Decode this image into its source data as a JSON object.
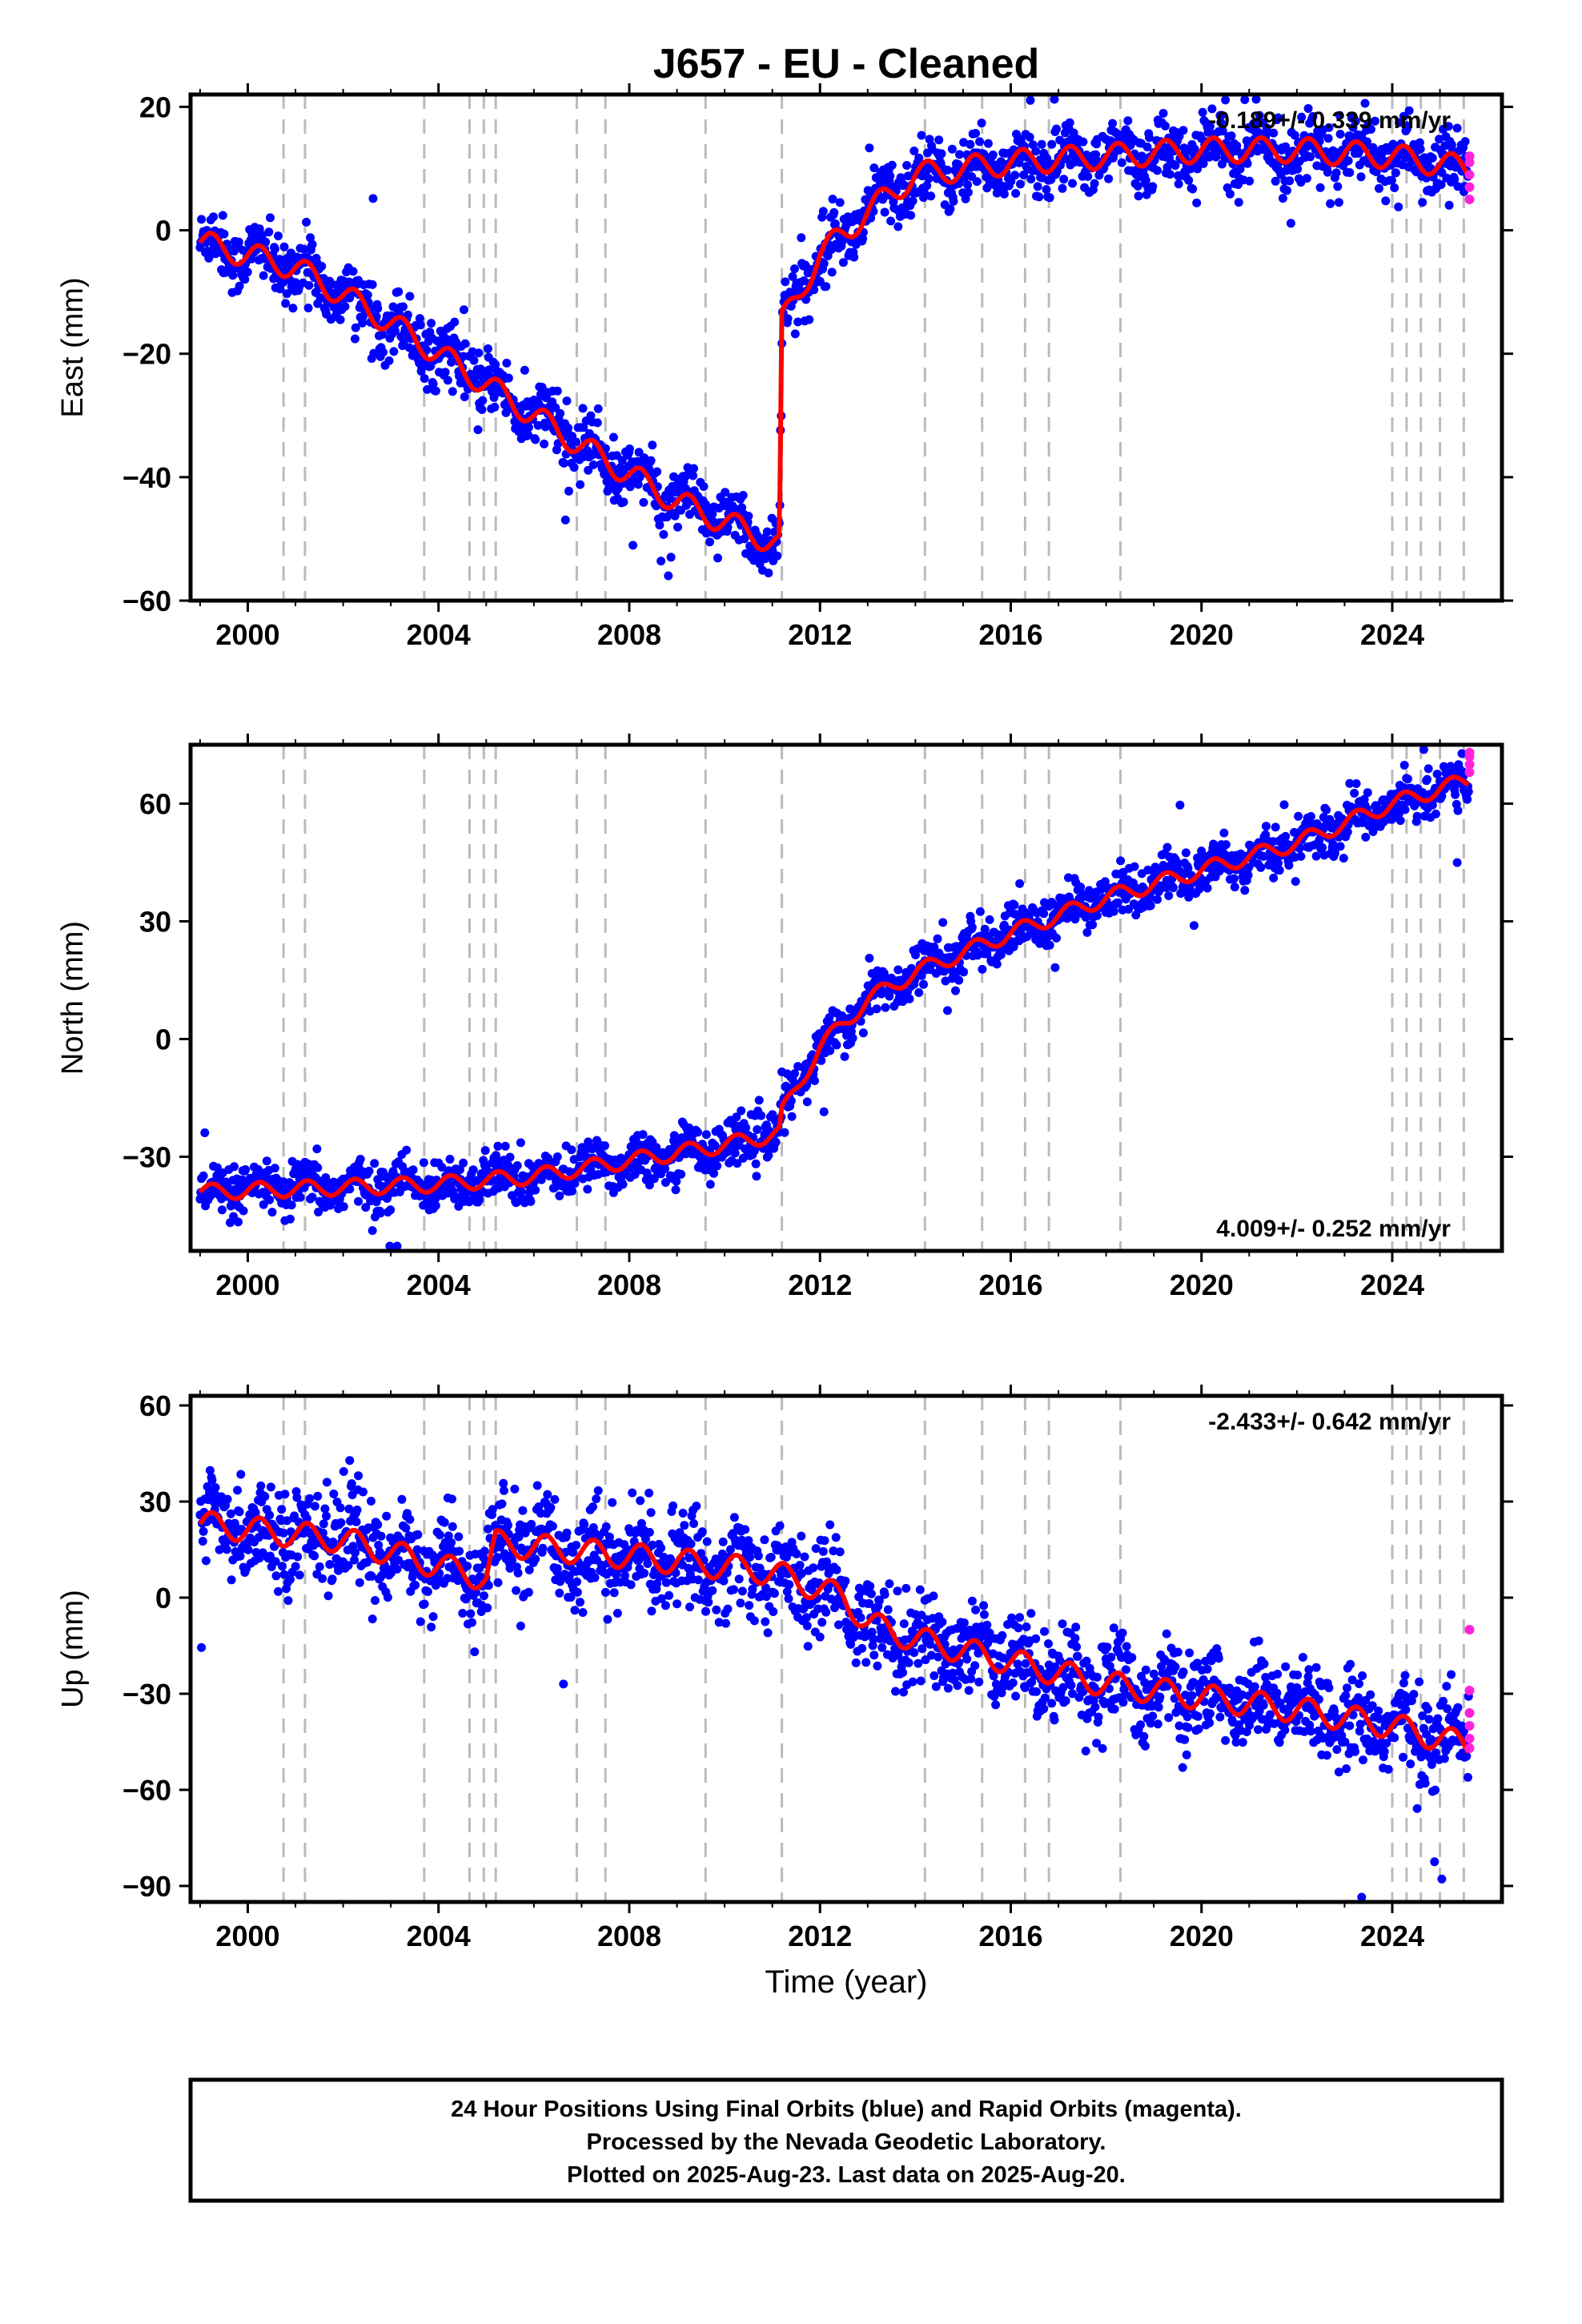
{
  "chart_data": {
    "type": "scatter",
    "title": "J657  - EU - Cleaned",
    "xlabel": "Time (year)",
    "xlim": [
      1998.8,
      2026.3
    ],
    "x_ticks": [
      2000,
      2004,
      2008,
      2012,
      2016,
      2020,
      2024
    ],
    "grid": false,
    "event_lines_years": [
      2000.75,
      2001.2,
      2003.7,
      2004.65,
      2004.95,
      2005.2,
      2006.9,
      2007.5,
      2009.6,
      2011.2,
      2014.2,
      2015.4,
      2016.3,
      2016.8,
      2018.3,
      2024.0,
      2024.3,
      2024.6,
      2025.0,
      2025.5
    ],
    "colors": {
      "final": "#0000ff",
      "rapid": "#ff22dd",
      "model": "#ff0000",
      "event": "#bbbbbb"
    },
    "legend": "bottom box",
    "panels": [
      {
        "ylabel": "East (mm)",
        "ylim": [
          -60,
          22
        ],
        "y_ticks": [
          -60,
          -40,
          -20,
          0,
          20
        ],
        "rate_label": "-0.189+/- 0.339 mm/yr",
        "rate_position": "top-right",
        "model_keypoints": [
          [
            1999.0,
            -2
          ],
          [
            2001.0,
            -6
          ],
          [
            2003.0,
            -15
          ],
          [
            2005.0,
            -25
          ],
          [
            2007.0,
            -35
          ],
          [
            2009.0,
            -44
          ],
          [
            2011.15,
            -51
          ],
          [
            2011.2,
            -15
          ],
          [
            2012.0,
            -4
          ],
          [
            2013.0,
            3
          ],
          [
            2014.0,
            9
          ],
          [
            2015.0,
            10
          ],
          [
            2016.0,
            11
          ],
          [
            2018.0,
            12
          ],
          [
            2020.0,
            13
          ],
          [
            2022.0,
            13
          ],
          [
            2024.0,
            12
          ],
          [
            2025.6,
            10
          ]
        ],
        "seasonal_amplitude": 2.0,
        "scatter": 2.5,
        "rapid_y": [
          5,
          7,
          9,
          11,
          12
        ]
      },
      {
        "ylabel": "North (mm)",
        "ylim": [
          -54,
          75
        ],
        "y_ticks": [
          -30,
          0,
          30,
          60
        ],
        "rate_label": "4.009+/- 0.252 mm/yr",
        "rate_position": "bottom-right",
        "model_keypoints": [
          [
            1999.0,
            -39
          ],
          [
            2004.0,
            -37
          ],
          [
            2006.0,
            -35
          ],
          [
            2008.0,
            -31
          ],
          [
            2010.0,
            -27
          ],
          [
            2011.15,
            -24
          ],
          [
            2011.2,
            -19
          ],
          [
            2012.0,
            -2
          ],
          [
            2013.0,
            10
          ],
          [
            2014.0,
            17
          ],
          [
            2015.0,
            22
          ],
          [
            2016.0,
            27
          ],
          [
            2018.0,
            36
          ],
          [
            2020.0,
            43
          ],
          [
            2022.0,
            50
          ],
          [
            2024.0,
            60
          ],
          [
            2025.6,
            66
          ]
        ],
        "seasonal_amplitude": 2.0,
        "scatter": 3.0,
        "rapid_y": [
          68,
          70,
          72,
          73
        ]
      },
      {
        "ylabel": "Up (mm)",
        "ylim": [
          -95,
          63
        ],
        "y_ticks": [
          -90,
          -60,
          -30,
          0,
          30,
          60
        ],
        "rate_label": "-2.433+/- 0.642 mm/yr",
        "rate_position": "top-right",
        "model_keypoints": [
          [
            1999.0,
            23
          ],
          [
            2002.0,
            18
          ],
          [
            2004.0,
            10
          ],
          [
            2005.0,
            6
          ],
          [
            2005.2,
            17
          ],
          [
            2008.0,
            13
          ],
          [
            2011.0,
            8
          ],
          [
            2012.5,
            0
          ],
          [
            2013.0,
            -8
          ],
          [
            2014.0,
            -13
          ],
          [
            2016.0,
            -20
          ],
          [
            2018.0,
            -27
          ],
          [
            2020.0,
            -31
          ],
          [
            2022.0,
            -35
          ],
          [
            2024.0,
            -40
          ],
          [
            2025.0,
            -44
          ],
          [
            2025.6,
            -46
          ]
        ],
        "seasonal_amplitude": 4.0,
        "scatter": 7.0,
        "rapid_y": [
          -10,
          -29,
          -36,
          -40,
          -44,
          -47
        ]
      }
    ]
  },
  "footer": {
    "line1": "24 Hour Positions Using Final Orbits (blue) and Rapid Orbits (magenta).",
    "line2": "Processed by the Nevada Geodetic Laboratory.",
    "line3": "Plotted on 2025-Aug-23. Last data on 2025-Aug-20."
  }
}
